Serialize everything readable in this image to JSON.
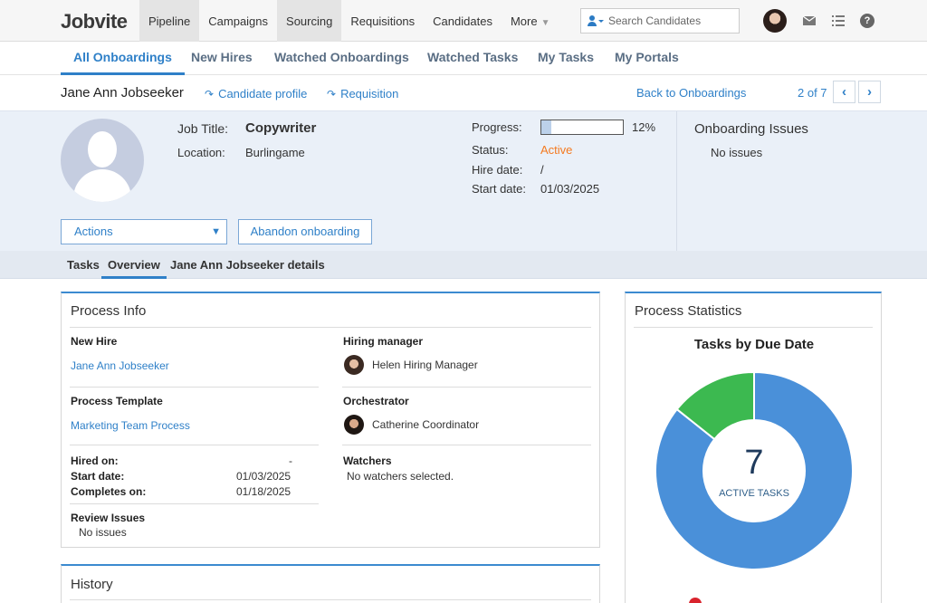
{
  "topbar": {
    "logo": "Jobvite",
    "nav": [
      "Pipeline",
      "Campaigns",
      "Sourcing",
      "Requisitions",
      "Candidates",
      "More"
    ],
    "search_placeholder": "Search Candidates",
    "icons": [
      "people-search-icon",
      "user-avatar",
      "mail-icon",
      "list-icon",
      "help-icon"
    ]
  },
  "subtabs": [
    "All Onboardings",
    "New Hires",
    "Watched Onboardings",
    "Watched Tasks",
    "My Tasks",
    "My Portals"
  ],
  "header": {
    "name": "Jane Ann Jobseeker",
    "candidate_profile": "Candidate profile",
    "requisition": "Requisition",
    "back": "Back to Onboardings",
    "pager": "2 of 7"
  },
  "profile": {
    "job_title_label": "Job Title:",
    "job_title": "Copywriter",
    "location_label": "Location:",
    "location": "Burlingame",
    "progress_label": "Progress:",
    "progress_value": 12,
    "progress_text": "12%",
    "status_label": "Status:",
    "status": "Active",
    "status_color": "#f47a20",
    "hire_date_label": "Hire date:",
    "hire_date": "/",
    "start_date_label": "Start date:",
    "start_date": "01/03/2025",
    "issues_title": "Onboarding Issues",
    "issues_text": "No issues",
    "actions_label": "Actions",
    "abandon_label": "Abandon onboarding"
  },
  "section_tabs": [
    "Tasks",
    "Overview",
    "Jane Ann Jobseeker details"
  ],
  "process_info": {
    "title": "Process Info",
    "new_hire_title": "New Hire",
    "new_hire": "Jane Ann Jobseeker",
    "template_title": "Process Template",
    "template": "Marketing Team Process",
    "hired_on_label": "Hired on:",
    "hired_on": "-",
    "start_date_label": "Start date:",
    "start_date": "01/03/2025",
    "completes_on_label": "Completes on:",
    "completes_on": "01/18/2025",
    "review_title": "Review Issues",
    "review_text": "No issues",
    "hiring_manager_title": "Hiring manager",
    "hiring_manager": "Helen Hiring Manager",
    "orchestrator_title": "Orchestrator",
    "orchestrator": "Catherine Coordinator",
    "watchers_title": "Watchers",
    "watchers_text": "No watchers selected."
  },
  "history": {
    "title": "History"
  },
  "stats": {
    "title": "Process Statistics",
    "chart_title": "Tasks by Due Date",
    "center_number": "7",
    "center_label": "ACTIVE TASKS"
  },
  "chart_data": {
    "type": "pie",
    "title": "Tasks by Due Date",
    "total": 7,
    "series": [
      {
        "values": [
          6,
          1
        ],
        "colors": [
          "#4a90d9",
          "#3cb950"
        ]
      }
    ]
  }
}
